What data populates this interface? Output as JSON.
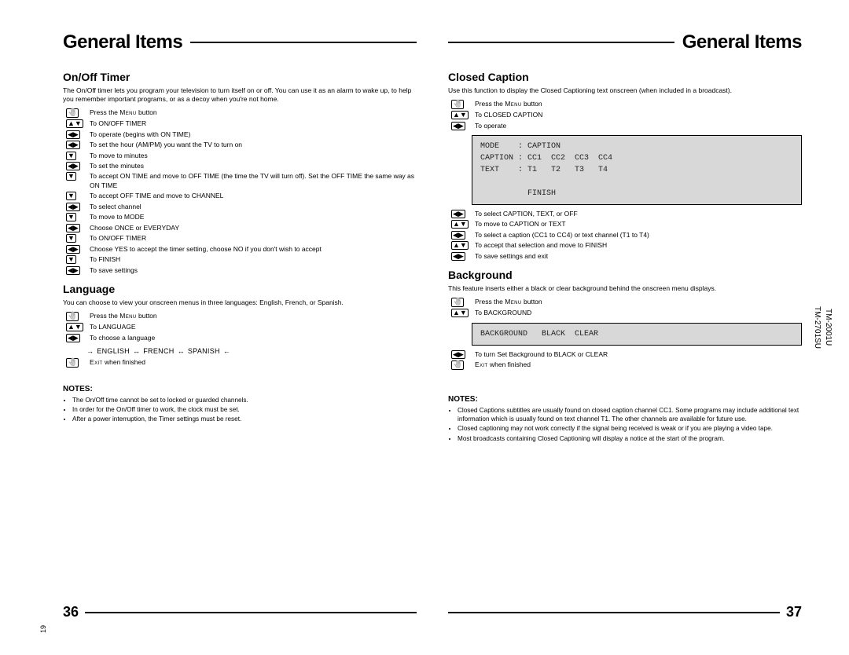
{
  "left": {
    "title": "General Items",
    "sections": {
      "timer": {
        "heading": "On/Off Timer",
        "desc": "The On/Off timer lets you program your television to turn itself on or off. You can use it as an alarm to wake up, to help you remember important programs, or as a decoy when you're not home.",
        "steps": [
          {
            "icon": "hand",
            "txt": "Press the MENU button"
          },
          {
            "icon": "ud",
            "txt": "To ON/OFF TIMER"
          },
          {
            "icon": "lr",
            "txt": "To operate (begins with ON TIME)"
          },
          {
            "icon": "lr",
            "txt": "To set the hour (AM/PM) you want the TV to turn on"
          },
          {
            "icon": "d",
            "txt": "To move to minutes"
          },
          {
            "icon": "lr",
            "txt": "To set the minutes"
          },
          {
            "icon": "d",
            "txt": "To accept ON TIME and move to OFF TIME (the time the TV will turn off). Set the OFF TIME the same way as ON TIME"
          },
          {
            "icon": "d",
            "txt": "To accept OFF TIME and move to CHANNEL"
          },
          {
            "icon": "lr",
            "txt": "To select channel"
          },
          {
            "icon": "d",
            "txt": "To move to MODE"
          },
          {
            "icon": "lr",
            "txt": "Choose ONCE or EVERYDAY"
          },
          {
            "icon": "d",
            "txt": "To ON/OFF TIMER"
          },
          {
            "icon": "lr",
            "txt": "Choose YES to accept the timer setting, choose NO if you don't wish to accept"
          },
          {
            "icon": "d",
            "txt": "To FINISH"
          },
          {
            "icon": "lr",
            "txt": "To save settings"
          }
        ]
      },
      "language": {
        "heading": "Language",
        "desc": "You can choose to view your onscreen menus in three languages: English, French, or Spanish.",
        "steps": [
          {
            "icon": "hand",
            "txt": "Press the MENU button"
          },
          {
            "icon": "ud",
            "txt": "To LANGUAGE"
          },
          {
            "icon": "lr",
            "txt": "To choose a language"
          }
        ],
        "lang_items": [
          "ENGLISH",
          "FRENCH",
          "SPANISH"
        ],
        "exit": {
          "icon": "hand",
          "txt": "EXIT when finished"
        }
      },
      "notes": {
        "heading": "NOTES:",
        "items": [
          "The On/Off time cannot be set to locked or guarded channels.",
          "In order for the On/Off timer to work, the clock must be set.",
          "After a power interruption, the Timer settings must be reset."
        ]
      }
    },
    "page_num": "36"
  },
  "right": {
    "title": "General Items",
    "sections": {
      "cc": {
        "heading": "Closed Caption",
        "desc": "Use this function to display the Closed Captioning text onscreen (when included in a broadcast).",
        "steps_top": [
          {
            "icon": "hand",
            "txt": "Press the MENU button"
          },
          {
            "icon": "ud",
            "txt": "To CLOSED CAPTION"
          },
          {
            "icon": "lr",
            "txt": "To operate"
          }
        ],
        "menu": "MODE    : CAPTION\nCAPTION : CC1  CC2  CC3  CC4\nTEXT    : T1   T2   T3   T4\n\n          FINISH",
        "steps_bottom": [
          {
            "icon": "lr",
            "txt": "To select CAPTION, TEXT, or OFF"
          },
          {
            "icon": "ud",
            "txt": "To move to CAPTION or TEXT"
          },
          {
            "icon": "lr",
            "txt": "To select a caption (CC1 to CC4) or text channel (T1 to T4)"
          },
          {
            "icon": "ud",
            "txt": "To accept that selection and move to FINISH"
          },
          {
            "icon": "lr",
            "txt": "To save settings and exit"
          }
        ]
      },
      "bg": {
        "heading": "Background",
        "desc": "This feature inserts either a black or clear background behind the onscreen menu displays.",
        "steps_top": [
          {
            "icon": "hand",
            "txt": "Press the MENU button"
          },
          {
            "icon": "ud",
            "txt": "To BACKGROUND"
          }
        ],
        "menu": "BACKGROUND   BLACK  CLEAR",
        "steps_bottom": [
          {
            "icon": "lr",
            "txt": "To turn Set Background to BLACK or CLEAR"
          },
          {
            "icon": "hand",
            "txt": "EXIT when finished"
          }
        ]
      },
      "notes": {
        "heading": "NOTES:",
        "items": [
          "Closed Captions subtitles are usually found on closed caption channel CC1. Some programs may include additional text information which is usually found on text channel T1. The other channels are available for future use.",
          "Closed captioning may not work correctly if the signal being received is weak or if you are playing a video tape.",
          "Most broadcasts containing Closed Captioning will display a notice at the start of the program."
        ]
      }
    },
    "page_num": "37"
  },
  "side": {
    "models": "TM-2001U\nTM-2701SU",
    "binder": "19"
  },
  "icons": {
    "hand": "✋",
    "ud": "▲▼",
    "lr": "◀▶",
    "d": "▼",
    "bi": "↔"
  },
  "style": {
    "page_bg": "#ffffff",
    "menu_bg": "#d8d8d8",
    "rule_color": "#000000",
    "title_fontsize": 24,
    "section_fontsize": 14,
    "body_fontsize": 8.5,
    "notes_fontsize": 8.2,
    "pagenum_fontsize": 18
  }
}
